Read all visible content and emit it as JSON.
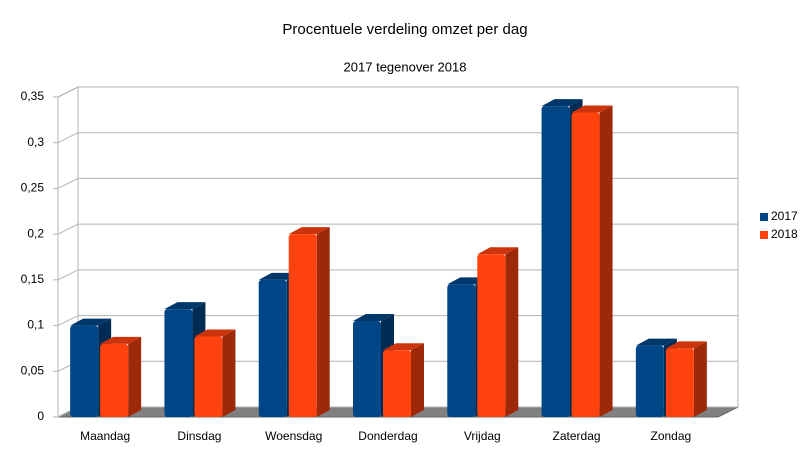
{
  "chart_data": {
    "type": "bar3d",
    "title": "Procentuele verdeling omzet per dag",
    "subtitle": "2017 tegenover 2018",
    "categories": [
      "Maandag",
      "Dinsdag",
      "Woensdag",
      "Donderdag",
      "Vrijdag",
      "Zaterdag",
      "Zondag"
    ],
    "series": [
      {
        "name": "2017",
        "color": "#004586",
        "values": [
          0.1,
          0.118,
          0.15,
          0.105,
          0.145,
          0.34,
          0.078
        ]
      },
      {
        "name": "2018",
        "color": "#ff420e",
        "values": [
          0.08,
          0.088,
          0.2,
          0.073,
          0.178,
          0.333,
          0.075
        ]
      }
    ],
    "ylim": [
      0,
      0.35
    ],
    "yticks": [
      0,
      {
        "value": 0.05,
        "label": "0,05"
      },
      {
        "value": 0.1,
        "label": "0,1"
      },
      {
        "value": 0.15,
        "label": "0,15"
      },
      {
        "value": 0.2,
        "label": "0,2"
      },
      {
        "value": 0.25,
        "label": "0,25"
      },
      {
        "value": 0.3,
        "label": "0,3"
      },
      {
        "value": 0.35,
        "label": "0,35"
      }
    ],
    "grid": true,
    "legend": "right"
  }
}
